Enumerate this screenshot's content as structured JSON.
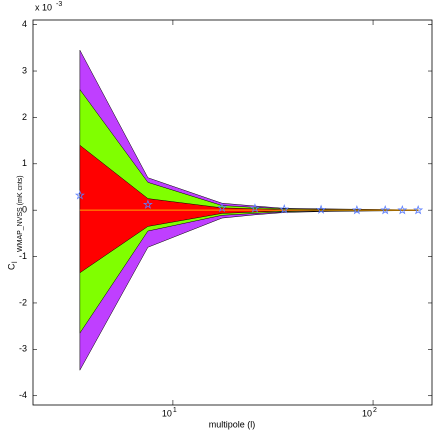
{
  "chart_data": {
    "type": "band",
    "x_label": "multipole (l)",
    "y_label": {
      "main": "C",
      "sub": "l",
      "rest": "WMAP_NVSS (mK cnts)"
    },
    "y_scale_label": {
      "base": "x 10",
      "exponent": "-3"
    },
    "x": [
      3.43,
      7.5,
      17.6,
      25.7,
      36,
      55,
      83,
      115,
      140,
      168
    ],
    "log_x": true,
    "xlim": [
      2,
      197
    ],
    "ylim": [
      -4.2,
      4.1
    ],
    "xticks": [
      {
        "value": 10,
        "label": "10",
        "exponent": "1"
      },
      {
        "value": 100,
        "label": "10",
        "exponent": "2"
      }
    ],
    "yticks": [
      -4,
      -3,
      -2,
      -1,
      0,
      1,
      2,
      3,
      4
    ],
    "bands": [
      {
        "color": "#bf3fff",
        "upper": [
          3.45,
          0.7,
          0.15,
          0.09,
          0.04,
          0.03,
          0.02,
          0.015,
          0.01,
          0.01
        ],
        "lower": [
          -3.45,
          -0.8,
          -0.17,
          -0.1,
          -0.05,
          -0.03,
          -0.02,
          -0.015,
          -0.01,
          -0.01
        ]
      },
      {
        "color": "#80ff00",
        "upper": [
          2.6,
          0.6,
          0.1,
          0.06,
          0.03,
          0.02,
          0.015,
          0.01,
          0.008,
          0.008
        ],
        "lower": [
          -2.65,
          -0.45,
          -0.11,
          -0.07,
          -0.035,
          -0.02,
          -0.015,
          -0.01,
          -0.008,
          -0.008
        ]
      },
      {
        "color": "#ff0000",
        "upper": [
          1.4,
          0.25,
          0.05,
          0.03,
          0.015,
          0.01,
          0.008,
          0.005,
          0.004,
          0.004
        ],
        "lower": [
          -1.35,
          -0.35,
          -0.07,
          -0.04,
          -0.02,
          -0.01,
          -0.008,
          -0.005,
          -0.004,
          -0.004
        ]
      }
    ],
    "zero_line": {
      "color": "#ffa500",
      "values": [
        0,
        0,
        0,
        0,
        0,
        0,
        0,
        0,
        0,
        0
      ]
    },
    "points": {
      "color": "#5a7dff",
      "values": [
        0.32,
        0.12,
        0.05,
        0.04,
        0.02,
        0.01,
        0.0,
        0.0,
        0.0,
        0.0
      ]
    }
  }
}
